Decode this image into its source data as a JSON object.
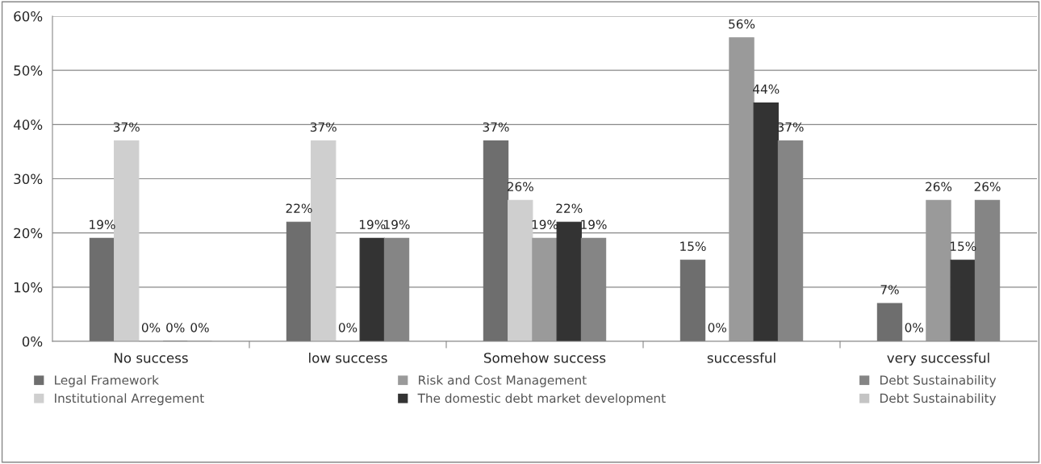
{
  "chart_data": {
    "type": "bar",
    "categories": [
      "No success",
      "low success",
      "Somehow success",
      "successful",
      "very successful"
    ],
    "series": [
      {
        "name": "Legal Framework",
        "color": "#6e6e6e",
        "values": [
          19,
          22,
          37,
          15,
          7
        ],
        "value_labels": [
          "19%",
          "22%",
          "37%",
          "15%",
          "7%"
        ]
      },
      {
        "name": "Institutional Arregement",
        "color": "#cfcfcf",
        "values": [
          37,
          37,
          26,
          0,
          0
        ],
        "value_labels": [
          "37%",
          "37%",
          "26%",
          "0%",
          "0%"
        ]
      },
      {
        "name": "Risk and Cost Management",
        "color": "#9a9a9a",
        "values": [
          0,
          0,
          19,
          56,
          26
        ],
        "value_labels": [
          "0%",
          "0%",
          "19%",
          "56%",
          "26%"
        ]
      },
      {
        "name": "The domestic debt market development",
        "color": "#333333",
        "values": [
          0,
          19,
          22,
          44,
          15
        ],
        "value_labels": [
          "0%",
          "19%",
          "22%",
          "44%",
          "15%"
        ]
      },
      {
        "name": "Debt Sustainability",
        "color": "#858585",
        "values": [
          0,
          19,
          19,
          37,
          26
        ],
        "value_labels": [
          "0%",
          "19%",
          "19%",
          "37%",
          "26%"
        ]
      },
      {
        "name": "Debt Sustainability",
        "color": "#c4c4c4",
        "values": [
          null,
          null,
          null,
          null,
          null
        ]
      }
    ],
    "ylim": [
      0,
      60
    ],
    "yticks": [
      {
        "value": 0,
        "label": "0%"
      },
      {
        "value": 10,
        "label": "10%"
      },
      {
        "value": 20,
        "label": "20%"
      },
      {
        "value": 30,
        "label": "30%"
      },
      {
        "value": 40,
        "label": "40%"
      },
      {
        "value": 50,
        "label": "50%"
      },
      {
        "value": 60,
        "label": "60%"
      }
    ],
    "grid": "y",
    "legend": "bottom"
  }
}
